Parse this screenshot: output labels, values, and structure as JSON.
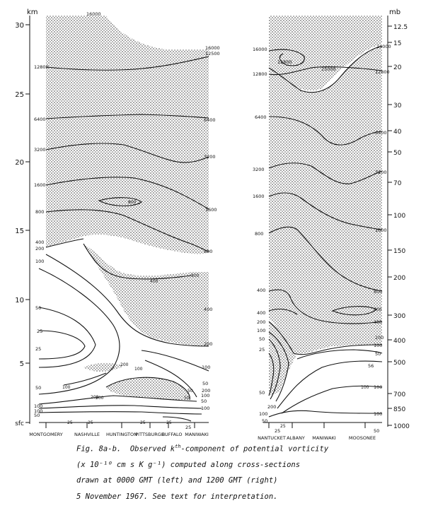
{
  "axes": {
    "km_unit": "km",
    "mb_unit": "mb",
    "km_ticks": [
      "30",
      "25",
      "20",
      "15",
      "10",
      "5",
      "sfc"
    ],
    "mb_ticks": [
      "12.5",
      "15",
      "20",
      "30",
      "40",
      "50",
      "70",
      "100",
      "150",
      "200",
      "300",
      "400",
      "500",
      "700",
      "850",
      "1000"
    ]
  },
  "left_panel": {
    "stations": [
      "MONTGOMERY",
      "NASHVILLE",
      "HUNTINGTON",
      "PITTSBURGH",
      "BUFFALO",
      "MANIWAKI"
    ],
    "top_label": "16000",
    "left_labels": [
      "12800",
      "6400",
      "3200",
      "1600",
      "800",
      "400",
      "200",
      "100",
      "50",
      "25",
      "100",
      "50",
      "100",
      "50",
      "25"
    ],
    "right_labels": [
      "16000",
      "12500",
      "6400",
      "3200",
      "1600",
      "800",
      "400",
      "200",
      "100",
      "50",
      "100",
      "200",
      "50",
      "100",
      "25"
    ],
    "inner_labels": [
      "800",
      "400",
      "800",
      "200",
      "100",
      "200",
      "50",
      "100",
      "50",
      "200",
      "25",
      "25",
      "25",
      "25"
    ]
  },
  "right_panel": {
    "stations": [
      "NANTUCKET",
      "ALBANY",
      "MANIWAKI",
      "MOOSONEE"
    ],
    "inner_top_labels": [
      "12800",
      "25000"
    ],
    "left_labels": [
      "16000",
      "12800",
      "6400",
      "3200",
      "1600",
      "800",
      "400",
      "400",
      "200",
      "100",
      "50",
      "25",
      "50",
      "100",
      "50",
      "200",
      "25"
    ],
    "right_labels": [
      "16000",
      "12800",
      "6400",
      "3200",
      "1600",
      "800",
      "400",
      "200",
      "100",
      "50",
      "100",
      "56",
      "100",
      "50"
    ],
    "inner_labels": [
      "800",
      "100",
      "25"
    ]
  },
  "caption": {
    "line1_prefix": "Fig. 8a-b.  Observed ",
    "line1_symbol": "k",
    "line1_sup": "th",
    "line1_suffix": "-component of potential vorticity",
    "line2": "(x 10⁻¹⁰ cm s K g⁻¹) computed along cross-sections",
    "line3": "drawn at 0000 GMT (left) and 1200 GMT (right)",
    "line4": "5 November 1967.  See text for interpretation."
  }
}
